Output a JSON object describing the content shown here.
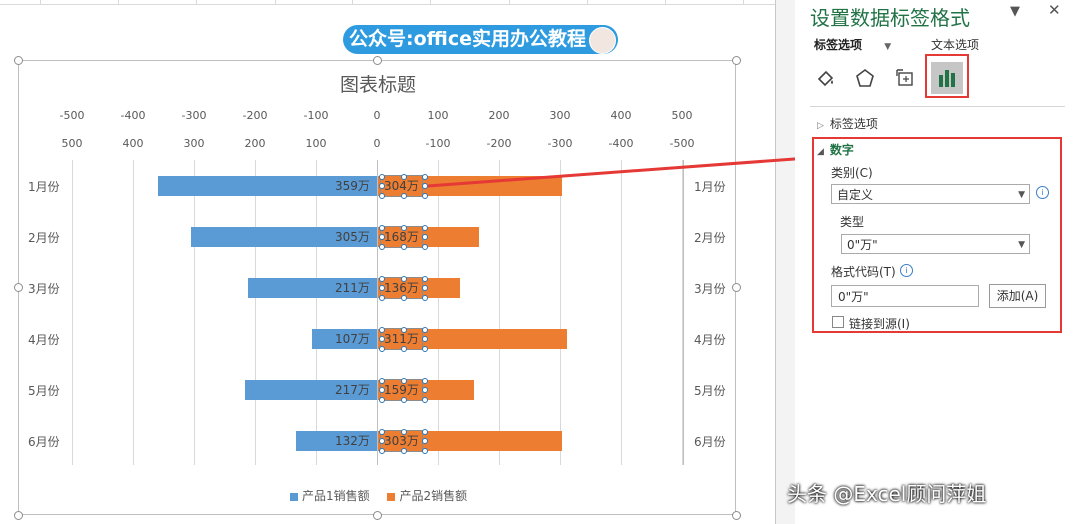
{
  "banner": {
    "text": "公众号:office实用办公教程"
  },
  "chart_data": {
    "type": "bar",
    "title": "图表标题",
    "orientation": "horizontal",
    "categories": [
      "1月份",
      "2月份",
      "3月份",
      "4月份",
      "5月份",
      "6月份"
    ],
    "series": [
      {
        "name": "产品1销售额",
        "values": [
          359,
          305,
          211,
          107,
          217,
          132
        ],
        "labels": [
          "359万",
          "305万",
          "211万",
          "107万",
          "217万",
          "132万"
        ],
        "color": "#5b9bd5",
        "direction": "left"
      },
      {
        "name": "产品2销售额",
        "values": [
          304,
          168,
          136,
          311,
          159,
          303
        ],
        "labels": [
          "304万",
          "168万",
          "136万",
          "311万",
          "159万",
          "303万"
        ],
        "color": "#ed7d31",
        "direction": "right"
      }
    ],
    "top_axis_ticks": [
      "-500",
      "-400",
      "-300",
      "-200",
      "-100",
      "0",
      "100",
      "200",
      "300",
      "400",
      "500"
    ],
    "second_axis_ticks": [
      "500",
      "400",
      "300",
      "200",
      "100",
      "0",
      "-100",
      "-200",
      "-300",
      "-400",
      "-500"
    ],
    "xlim": [
      -500,
      500
    ],
    "grid": true,
    "legend_position": "bottom"
  },
  "pane": {
    "title": "设置数据标签格式",
    "tabs": {
      "label_options": "标签选项",
      "text_options": "文本选项"
    },
    "icons": [
      "paint-bucket-icon",
      "pentagon-icon",
      "size-properties-icon",
      "bar-chart-icon"
    ],
    "sections": {
      "label_options": "标签选项",
      "number": "数字"
    },
    "category_label": "类别(C)",
    "category_value": "自定义",
    "type_label": "类型",
    "type_value": "0\"万\"",
    "format_code_label": "格式代码(T)",
    "format_code_value": "0\"万\"",
    "add_button": "添加(A)",
    "link_to_source": "链接到源(I)",
    "close_glyph": "✕",
    "dropdown_glyph": "▼"
  },
  "watermark": "头条 @Excel顾问萍姐"
}
